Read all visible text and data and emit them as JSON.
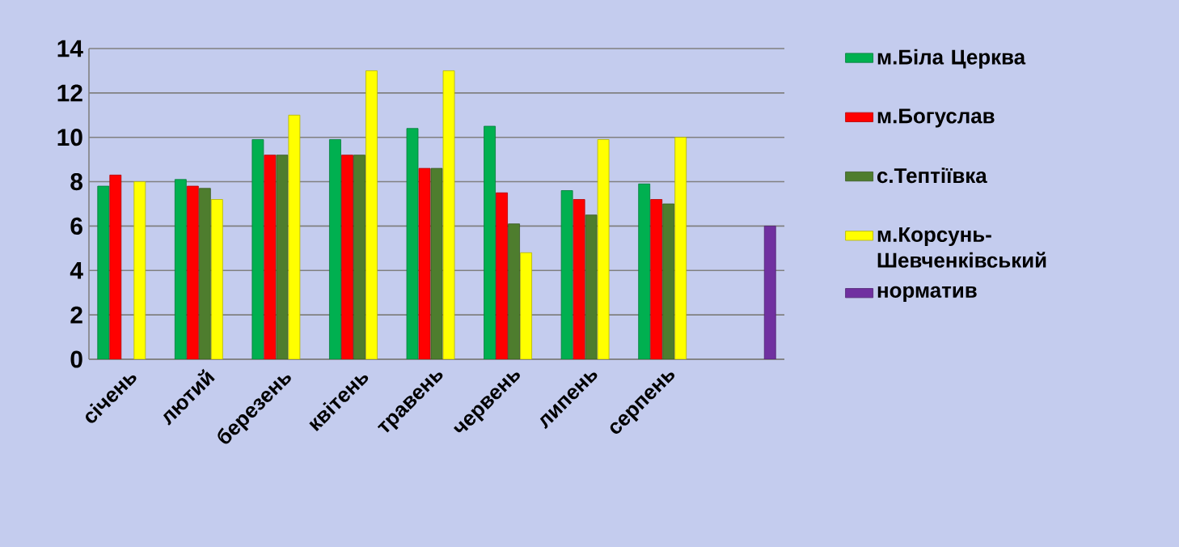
{
  "chart_data": {
    "type": "bar",
    "categories": [
      "січень",
      "лютий",
      "березень",
      "квітень",
      "травень",
      "червень",
      "липень",
      "серпень",
      null
    ],
    "series": [
      {
        "name": "м.Біла Церква",
        "color": "#00b050",
        "values": [
          7.8,
          8.1,
          9.9,
          9.9,
          10.4,
          10.5,
          7.6,
          7.9,
          null
        ]
      },
      {
        "name": "м.Богуслав",
        "color": "#ff0000",
        "values": [
          8.3,
          7.8,
          9.2,
          9.2,
          8.6,
          7.5,
          7.2,
          7.2,
          null
        ]
      },
      {
        "name": "с.Тептіївка",
        "color": "#4e7d2e",
        "values": [
          null,
          7.7,
          9.2,
          9.2,
          8.6,
          6.1,
          6.5,
          7.0,
          null
        ]
      },
      {
        "name": "м.Корсунь-Шевченківський",
        "color": "#ffff00",
        "values": [
          8.0,
          7.2,
          11.0,
          13.0,
          13.0,
          4.8,
          9.9,
          10.0,
          null
        ]
      },
      {
        "name": "норматив",
        "color": "#7030a0",
        "values": [
          null,
          null,
          null,
          null,
          null,
          null,
          null,
          null,
          6.0
        ]
      }
    ],
    "ylim": [
      0,
      14
    ],
    "yticks": [
      0,
      2,
      4,
      6,
      8,
      10,
      12,
      14
    ],
    "grid": "y",
    "legend": "right"
  }
}
